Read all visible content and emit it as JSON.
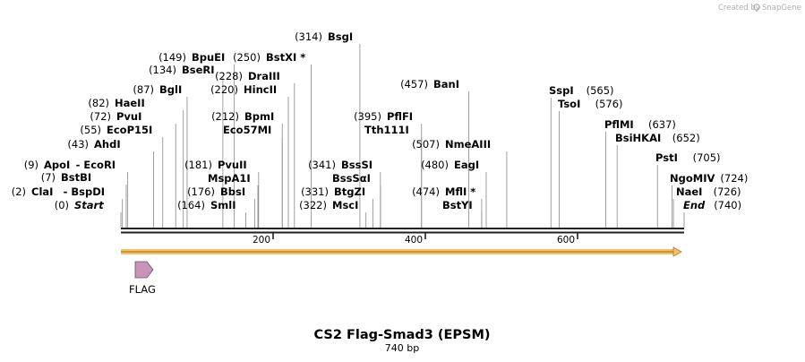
{
  "title": "CS2 Flag-Smad3 (EPSM)",
  "subtitle": "740 bp",
  "credit": {
    "text": "Created by",
    "brand": "SnapGene",
    "logo_icon": "snapgene-logo-icon"
  },
  "sequence_length": 740,
  "ticks": [
    "200",
    "400",
    "600"
  ],
  "feature": {
    "label": "FLAG",
    "color": "#c994b8"
  },
  "colors": {
    "backbone": "#222222",
    "arrow": "#f5c06a",
    "connector": "#888888"
  },
  "sites": [
    {
      "name": "Start",
      "pos": "(0)",
      "bp": 0,
      "italic": true
    },
    {
      "name": "ClaI",
      "pos": "(2)",
      "bp": 2,
      "prefix": "-",
      "partner": "BspDI"
    },
    {
      "name": "BstBI",
      "pos": "(7)",
      "bp": 7
    },
    {
      "name": "ApoI",
      "pos": "(9)",
      "bp": 9,
      "prefix": "-",
      "partner": "EcoRI"
    },
    {
      "name": "AhdI",
      "pos": "(43)",
      "bp": 43
    },
    {
      "name": "EcoP15I",
      "pos": "(55)",
      "bp": 55
    },
    {
      "name": "PvuI",
      "pos": "(72)",
      "bp": 72
    },
    {
      "name": "HaeII",
      "pos": "(82)",
      "bp": 82
    },
    {
      "name": "BglI",
      "pos": "(87)",
      "bp": 87
    },
    {
      "name": "BseRI",
      "pos": "(134)",
      "bp": 134
    },
    {
      "name": "BpuEI",
      "pos": "(149)",
      "bp": 149
    },
    {
      "name": "SmlI",
      "pos": "(164)",
      "bp": 164
    },
    {
      "name": "BbsI",
      "pos": "(176)",
      "bp": 176
    },
    {
      "name": "MspA1I",
      "bp": 180
    },
    {
      "name": "PvuII",
      "pos": "(181)",
      "bp": 181
    },
    {
      "name": "Eco57MI",
      "bp": 212
    },
    {
      "name": "BpmI",
      "pos": "(212)",
      "bp": 212
    },
    {
      "name": "HincII",
      "pos": "(220)",
      "bp": 220
    },
    {
      "name": "DraIII",
      "pos": "(228)",
      "bp": 228
    },
    {
      "name": "BstXI",
      "pos": "(250)",
      "bp": 250,
      "star": "*"
    },
    {
      "name": "BsgI",
      "pos": "(314)",
      "bp": 314
    },
    {
      "name": "MscI",
      "pos": "(322)",
      "bp": 322
    },
    {
      "name": "BtgZI",
      "pos": "(331)",
      "bp": 331
    },
    {
      "name": "BssSαI",
      "bp": 341
    },
    {
      "name": "BssSI",
      "pos": "(341)",
      "bp": 341
    },
    {
      "name": "Tth111I",
      "bp": 395
    },
    {
      "name": "PflFI",
      "pos": "(395)",
      "bp": 395
    },
    {
      "name": "BanI",
      "pos": "(457)",
      "bp": 457
    },
    {
      "name": "BstYI",
      "bp": 474
    },
    {
      "name": "MflI",
      "pos": "(474)",
      "bp": 474,
      "star": "*"
    },
    {
      "name": "EagI",
      "pos": "(480)",
      "bp": 480
    },
    {
      "name": "NmeAIII",
      "pos": "(507)",
      "bp": 507
    },
    {
      "name": "SspI",
      "pos": "(565)",
      "bp": 565
    },
    {
      "name": "TsoI",
      "pos": "(576)",
      "bp": 576
    },
    {
      "name": "PflMI",
      "pos": "(637)",
      "bp": 637
    },
    {
      "name": "BsiHKAI",
      "pos": "(652)",
      "bp": 652
    },
    {
      "name": "PstI",
      "pos": "(705)",
      "bp": 705
    },
    {
      "name": "NgoMIV",
      "pos": "(724)",
      "bp": 724
    },
    {
      "name": "NaeI",
      "pos": "(726)",
      "bp": 726
    },
    {
      "name": "End",
      "pos": "(740)",
      "bp": 740,
      "italic": true
    }
  ]
}
